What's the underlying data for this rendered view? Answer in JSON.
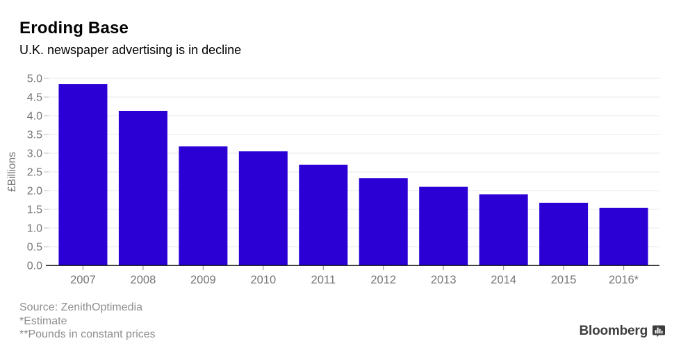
{
  "header": {
    "title": "Eroding Base",
    "subtitle": "U.K. newspaper advertising is in decline"
  },
  "chart_data": {
    "type": "bar",
    "title": "Eroding Base",
    "subtitle": "U.K. newspaper advertising is in decline",
    "categories": [
      "2007",
      "2008",
      "2009",
      "2010",
      "2011",
      "2012",
      "2013",
      "2014",
      "2015",
      "2016*"
    ],
    "values": [
      4.85,
      4.13,
      3.18,
      3.05,
      2.69,
      2.33,
      2.1,
      1.9,
      1.67,
      1.54
    ],
    "xlabel": "",
    "ylabel": "£Billions",
    "ylim": [
      0,
      5.0
    ],
    "ytick_step": 0.5,
    "grid": true,
    "legend": "none",
    "bar_color": "#2a00d5",
    "gridline_color": "#e9e9e9",
    "axis_tick_color": "#bdbdbd",
    "axis_line_color": "#000000",
    "axis_label_color": "#757575",
    "x_tick_color": "#9b9b9b"
  },
  "footer": {
    "source": "Source: ZenithOptimedia",
    "note1": "*Estimate",
    "note2": "**Pounds in constant prices"
  },
  "branding": {
    "logo_text": "Bloomberg"
  }
}
